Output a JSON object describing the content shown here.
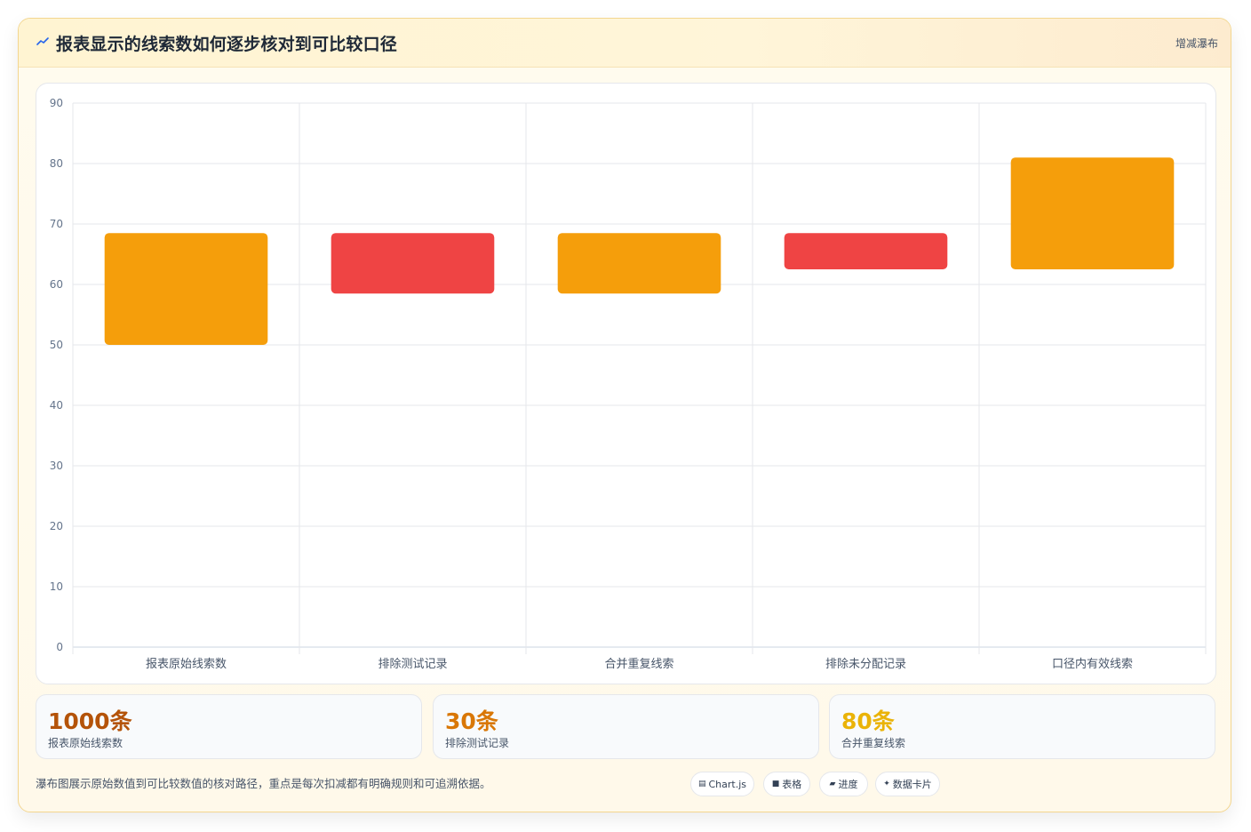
{
  "header": {
    "title": "报表显示的线索数如何逐步核对到可比较口径",
    "tag": "增减瀑布",
    "icon": "chart-trend-icon"
  },
  "chart_data": {
    "type": "bar",
    "variant": "waterfall",
    "categories": [
      "报表原始线索数",
      "排除测试记录",
      "合并重复线索",
      "排除未分配记录",
      "口径内有效线索"
    ],
    "ranges": [
      [
        50,
        68.5
      ],
      [
        58.5,
        68.5
      ],
      [
        58.5,
        68.5
      ],
      [
        62.5,
        68.5
      ],
      [
        62.5,
        81
      ]
    ],
    "colors": [
      "#f59e0b",
      "#ef4444",
      "#f59e0b",
      "#ef4444",
      "#f59e0b"
    ],
    "ylim": [
      0,
      90
    ],
    "yticks": [
      0,
      10,
      20,
      30,
      40,
      50,
      60,
      70,
      80,
      90
    ],
    "grid": true,
    "legend": "none"
  },
  "stats": [
    {
      "value": "1000条",
      "label": "报表原始线索数",
      "color": "#b45309"
    },
    {
      "value": "30条",
      "label": "排除测试记录",
      "color": "#d97706"
    },
    {
      "value": "80条",
      "label": "合并重复线索",
      "color": "#eab308"
    }
  ],
  "footer": {
    "note": "瀑布图展示原始数值到可比较数值的核对路径，重点是每次扣减都有明确规则和可追溯依据。",
    "pills": [
      {
        "icon": "▤",
        "label": "Chart.js"
      },
      {
        "icon": "■",
        "label": "表格"
      },
      {
        "icon": "▰",
        "label": "进度"
      },
      {
        "icon": "✦",
        "label": "数据卡片"
      }
    ]
  }
}
